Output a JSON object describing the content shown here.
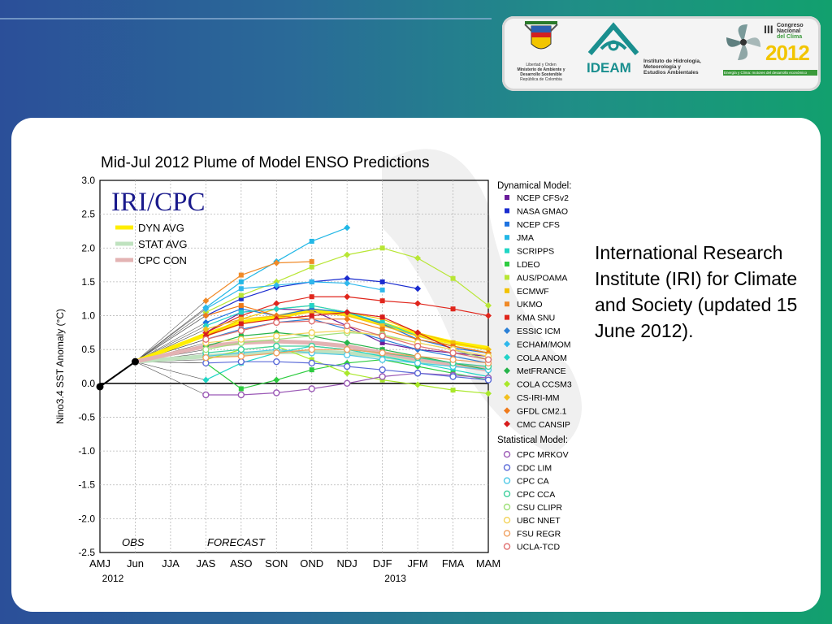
{
  "slide": {
    "caption": "International Research Institute (IRI) for Climate and Society (updated 15 June 2012)."
  },
  "logos": {
    "ministry": {
      "line1": "Libertad y Orden",
      "line2": "Ministerio de Ambiente y",
      "line3": "Desarrollo Sostenible",
      "line4": "República de Colombia"
    },
    "ideam": {
      "name": "IDEAM",
      "line1": "Instituto de Hidrología,",
      "line2": "Meteorología y",
      "line3": "Estudios Ambientales"
    },
    "congreso": {
      "roman": "III",
      "line1": "Congreso",
      "line2": "Nacional",
      "line3": "del Clima",
      "year": "2012",
      "tagline": "Energía y Clima: motores del desarrollo económico"
    }
  },
  "colors": {
    "ideam_teal": "#1a8f8f",
    "congreso_yellow": "#f2c500",
    "congreso_green": "#3a9a3a",
    "forecast_line": "#333333"
  },
  "chart_data": {
    "type": "line",
    "title": "Mid-Jul 2012 Plume of Model ENSO Predictions",
    "watermark": "IRI/CPC",
    "ylabel": "Nino3.4 SST Anomaly (°C)",
    "ylim": [
      -2.5,
      3.0
    ],
    "yticks": [
      3.0,
      2.5,
      2.0,
      1.5,
      1.0,
      0.5,
      0.0,
      -0.5,
      -1.0,
      -1.5,
      -2.0,
      -2.5
    ],
    "ytick_labels": [
      "3.0",
      "2.5",
      "2.0",
      "1.5",
      "1.0",
      "0.5",
      "0.0",
      "-0.5",
      "-1.0",
      "-1.5",
      "-2.0",
      "-2.5"
    ],
    "categories": [
      "AMJ",
      "Jun",
      "JJA",
      "JAS",
      "ASO",
      "SON",
      "OND",
      "NDJ",
      "DJF",
      "JFM",
      "FMA",
      "MAM"
    ],
    "year_labels": [
      {
        "label": "2012",
        "at": "AMJ"
      },
      {
        "label": "2013",
        "at": "DJF"
      }
    ],
    "grid": true,
    "region_labels": {
      "obs": "OBS",
      "forecast": "FORECAST"
    },
    "observed": {
      "x": [
        "AMJ",
        "Jun"
      ],
      "values": [
        -0.05,
        0.32
      ]
    },
    "avg_legend": [
      {
        "name": "DYN AVG",
        "color": "#ffee00",
        "values": [
          null,
          0.32,
          null,
          0.72,
          0.9,
          0.98,
          1.08,
          1.02,
          0.88,
          0.72,
          0.6,
          0.52
        ]
      },
      {
        "name": "STAT AVG",
        "color": "#bfe2bf",
        "values": [
          null,
          0.32,
          null,
          0.4,
          0.44,
          0.46,
          0.47,
          0.45,
          0.4,
          0.33,
          0.27,
          0.22
        ]
      },
      {
        "name": "CPC CON",
        "color": "#e3b3b3",
        "values": [
          null,
          0.32,
          null,
          0.55,
          0.6,
          0.62,
          0.6,
          0.55,
          0.45,
          0.36,
          0.28,
          0.2
        ]
      }
    ],
    "dynamical_header": "Dynamical Model:",
    "statistical_header": "Statistical Model:",
    "series": [
      {
        "name": "NCEP CFSv2",
        "group": "dyn",
        "color": "#6a1b9a",
        "values": [
          null,
          null,
          null,
          0.75,
          1.05,
          1.1,
          1.08,
          0.85,
          0.6,
          0.5,
          0.45,
          0.4
        ]
      },
      {
        "name": "NASA GMAO",
        "group": "dyn",
        "color": "#1a2ccf",
        "values": [
          null,
          null,
          null,
          1.0,
          1.25,
          1.42,
          1.5,
          1.55,
          1.5,
          1.4,
          null,
          null
        ]
      },
      {
        "name": "NCEP CFS",
        "group": "dyn",
        "color": "#1e73e0",
        "values": [
          null,
          null,
          null,
          0.9,
          1.1,
          1.0,
          1.1,
          1.05,
          0.88,
          0.65,
          0.52,
          0.45
        ]
      },
      {
        "name": "JMA",
        "group": "dyn",
        "color": "#22b7e6",
        "values": [
          null,
          null,
          null,
          1.12,
          1.5,
          1.8,
          2.1,
          2.3,
          null,
          null,
          null,
          null
        ]
      },
      {
        "name": "SCRIPPS",
        "group": "dyn",
        "color": "#20d6c5",
        "values": [
          null,
          null,
          null,
          0.05,
          0.3,
          0.45,
          0.55,
          0.5,
          0.4,
          0.3,
          0.2,
          0.1
        ]
      },
      {
        "name": "LDEO",
        "group": "dyn",
        "color": "#2ecc40",
        "values": [
          null,
          null,
          null,
          0.3,
          -0.08,
          0.05,
          0.2,
          0.3,
          0.35,
          0.25,
          0.15,
          0.05
        ]
      },
      {
        "name": "AUS/POAMA",
        "group": "dyn",
        "color": "#b8e634",
        "values": [
          null,
          null,
          null,
          1.05,
          1.3,
          1.5,
          1.72,
          1.9,
          2.0,
          1.85,
          1.55,
          1.15
        ]
      },
      {
        "name": "ECMWF",
        "group": "dyn",
        "color": "#f2c200",
        "values": [
          null,
          null,
          null,
          0.7,
          0.95,
          1.1,
          1.15,
          1.05,
          0.95,
          0.75,
          0.6,
          0.5
        ]
      },
      {
        "name": "UKMO",
        "group": "dyn",
        "color": "#f08a28",
        "values": [
          null,
          null,
          null,
          1.22,
          1.6,
          1.78,
          1.8,
          null,
          null,
          null,
          null,
          null
        ]
      },
      {
        "name": "KMA SNU",
        "group": "dyn",
        "color": "#e0261c",
        "values": [
          null,
          null,
          null,
          0.75,
          1.0,
          1.18,
          1.28,
          1.28,
          1.22,
          1.18,
          1.1,
          1.0
        ]
      },
      {
        "name": "ESSIC ICM",
        "group": "dyn",
        "color": "#2a7fd6",
        "values": [
          null,
          null,
          null,
          0.65,
          0.8,
          0.9,
          0.95,
          0.8,
          0.65,
          0.5,
          0.4,
          0.3
        ]
      },
      {
        "name": "ECHAM/MOM",
        "group": "dyn",
        "color": "#2fb8ec",
        "values": [
          null,
          null,
          null,
          1.1,
          1.4,
          1.45,
          1.5,
          1.48,
          1.38,
          null,
          null,
          null
        ]
      },
      {
        "name": "COLA ANOM",
        "group": "dyn",
        "color": "#22d3c8",
        "values": [
          null,
          null,
          null,
          0.85,
          1.05,
          1.1,
          1.15,
          1.05,
          0.9,
          0.7,
          0.55,
          0.45
        ]
      },
      {
        "name": "MetFRANCE",
        "group": "dyn",
        "color": "#26b34a",
        "values": [
          null,
          null,
          null,
          0.55,
          0.7,
          0.75,
          0.7,
          0.6,
          0.5,
          0.4,
          0.3,
          0.2
        ]
      },
      {
        "name": "COLA CCSM3",
        "group": "dyn",
        "color": "#a9e82a",
        "values": [
          null,
          null,
          null,
          0.35,
          0.5,
          0.55,
          0.35,
          0.15,
          0.05,
          -0.02,
          -0.1,
          -0.15
        ]
      },
      {
        "name": "CS-IRI-MM",
        "group": "dyn",
        "color": "#f2c020",
        "values": [
          null,
          null,
          null,
          0.8,
          0.95,
          1.0,
          1.05,
          1.0,
          0.85,
          0.7,
          0.55,
          0.45
        ]
      },
      {
        "name": "GFDL CM2.1",
        "group": "dyn",
        "color": "#f07a1a",
        "values": [
          null,
          null,
          null,
          1.0,
          1.15,
          1.0,
          0.95,
          0.95,
          0.8,
          0.65,
          0.55,
          0.45
        ]
      },
      {
        "name": "CMC CANSIP",
        "group": "dyn",
        "color": "#d81c1c",
        "values": [
          null,
          null,
          null,
          0.7,
          0.88,
          0.95,
          1.0,
          1.05,
          0.98,
          0.75,
          0.5,
          0.35
        ]
      },
      {
        "name": "CPC MRKOV",
        "group": "stat",
        "color": "#9b59b6",
        "values": [
          null,
          null,
          null,
          -0.17,
          -0.17,
          -0.14,
          -0.08,
          0.0,
          0.1,
          0.15,
          0.12,
          0.08
        ]
      },
      {
        "name": "CDC LIM",
        "group": "stat",
        "color": "#5b6bd8",
        "values": [
          null,
          null,
          null,
          0.3,
          0.32,
          0.32,
          0.3,
          0.25,
          0.2,
          0.15,
          0.1,
          0.05
        ]
      },
      {
        "name": "CPC CA",
        "group": "stat",
        "color": "#4fc9e6",
        "values": [
          null,
          null,
          null,
          0.4,
          0.45,
          0.5,
          0.45,
          0.42,
          0.35,
          0.3,
          0.25,
          0.2
        ]
      },
      {
        "name": "CPC CCA",
        "group": "stat",
        "color": "#3dcf9c",
        "values": [
          null,
          null,
          null,
          0.45,
          0.5,
          0.55,
          0.55,
          0.5,
          0.45,
          0.38,
          0.3,
          0.25
        ]
      },
      {
        "name": "CSU CLIPR",
        "group": "stat",
        "color": "#9fe07a",
        "values": [
          null,
          null,
          null,
          0.5,
          0.6,
          0.65,
          0.7,
          0.75,
          0.72,
          0.6,
          0.5,
          0.35
        ]
      },
      {
        "name": "UBC NNET",
        "group": "stat",
        "color": "#f3d35a",
        "values": [
          null,
          null,
          null,
          0.6,
          0.65,
          0.7,
          0.75,
          0.78,
          0.7,
          0.6,
          0.5,
          0.4
        ]
      },
      {
        "name": "FSU REGR",
        "group": "stat",
        "color": "#f0a060",
        "values": [
          null,
          null,
          null,
          0.38,
          0.4,
          0.45,
          0.5,
          0.5,
          0.45,
          0.4,
          0.35,
          0.3
        ]
      },
      {
        "name": "UCLA-TCD",
        "group": "stat",
        "color": "#e07070",
        "values": [
          null,
          null,
          null,
          0.65,
          0.78,
          0.9,
          0.92,
          0.85,
          0.7,
          0.55,
          0.45,
          0.35
        ]
      }
    ]
  }
}
